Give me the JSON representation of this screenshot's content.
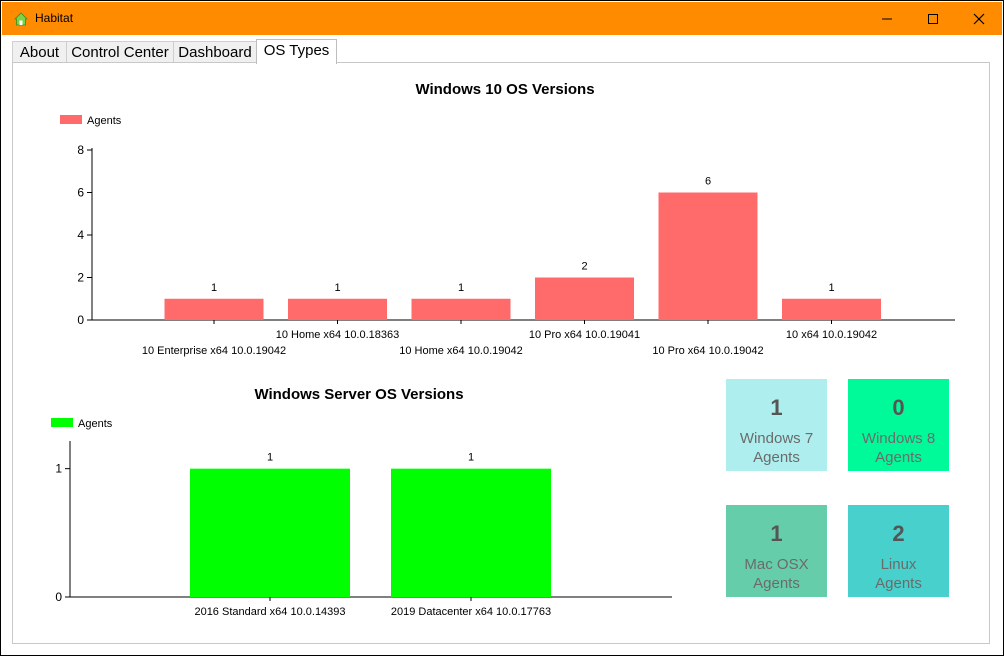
{
  "window": {
    "title": "Habitat",
    "titlebar_color": "#ff8c00"
  },
  "tabs": [
    {
      "label": "About"
    },
    {
      "label": "Control Center"
    },
    {
      "label": "Dashboard"
    },
    {
      "label": "OS Types",
      "active": true
    }
  ],
  "chart_data": [
    {
      "type": "bar",
      "title": "Windows 10 OS Versions",
      "legend": "Agents",
      "legend_position": "top-left",
      "color": "#ff6b6b",
      "categories": [
        "10 Enterprise x64 10.0.19042",
        "10 Home x64 10.0.18363",
        "10 Home x64 10.0.19042",
        "10 Pro x64 10.0.19041",
        "10 Pro x64 10.0.19042",
        "10 x64 10.0.19042"
      ],
      "values": [
        1,
        1,
        1,
        2,
        6,
        1
      ],
      "data_labels": [
        "1",
        "1",
        "1",
        "2",
        "6",
        "1"
      ],
      "yticks": [
        "0",
        "2",
        "4",
        "6",
        "8"
      ],
      "ylim": [
        0,
        8
      ],
      "grid": false
    },
    {
      "type": "bar",
      "title": "Windows Server OS Versions",
      "legend": "Agents",
      "legend_position": "top-left",
      "color": "#00ff00",
      "categories": [
        "2016 Standard x64 10.0.14393",
        "2019 Datacenter x64 10.0.17763"
      ],
      "values": [
        1,
        1
      ],
      "data_labels": [
        "1",
        "1"
      ],
      "yticks": [
        "0",
        "1"
      ],
      "ylim": [
        0,
        1.2
      ],
      "grid": false
    }
  ],
  "cards": [
    {
      "count": "1",
      "line1": "Windows 7",
      "line2": "Agents",
      "color": "#afeeee"
    },
    {
      "count": "0",
      "line1": "Windows 8",
      "line2": "Agents",
      "color": "#00fa9a"
    },
    {
      "count": "1",
      "line1": "Mac OSX",
      "line2": "Agents",
      "color": "#66cdaa"
    },
    {
      "count": "2",
      "line1": "Linux",
      "line2": "Agents",
      "color": "#48d1cc"
    }
  ]
}
